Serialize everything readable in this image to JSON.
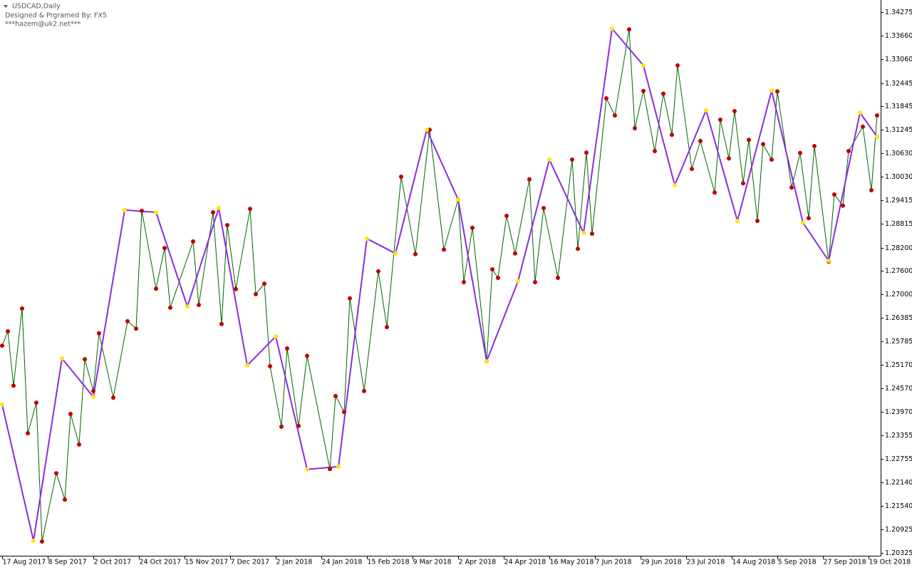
{
  "chart_data": {
    "type": "line",
    "title": "USDCAD,Daily",
    "annotations": [
      "Designed & Prgramed By: FX5",
      "***hazem@uk2.net***"
    ],
    "xlim": [
      0,
      307
    ],
    "xticks": [
      {
        "value": 0,
        "label": "17 Aug 2017"
      },
      {
        "value": 16,
        "label": "8 Sep 2017"
      },
      {
        "value": 32,
        "label": "2 Oct 2017"
      },
      {
        "value": 48,
        "label": "24 Oct 2017"
      },
      {
        "value": 64,
        "label": "15 Nov 2017"
      },
      {
        "value": 80,
        "label": "7 Dec 2017"
      },
      {
        "value": 96,
        "label": "2 Jan 2018"
      },
      {
        "value": 112,
        "label": "24 Jan 2018"
      },
      {
        "value": 128,
        "label": "15 Feb 2018"
      },
      {
        "value": 144,
        "label": "9 Mar 2018"
      },
      {
        "value": 160,
        "label": "2 Apr 2018"
      },
      {
        "value": 176,
        "label": "24 Apr 2018"
      },
      {
        "value": 192,
        "label": "16 May 2018"
      },
      {
        "value": 208,
        "label": "7 Jun 2018"
      },
      {
        "value": 224,
        "label": "29 Jun 2018"
      },
      {
        "value": 240,
        "label": "23 Jul 2018"
      },
      {
        "value": 256,
        "label": "14 Aug 2018"
      },
      {
        "value": 272,
        "label": "5 Sep 2018"
      },
      {
        "value": 288,
        "label": "27 Sep 2018"
      },
      {
        "value": 304,
        "label": "19 Oct 2018"
      }
    ],
    "ylim": [
      1.20325,
      1.34275
    ],
    "yticks": [
      1.34275,
      {
        "value": 1.3366,
        "label": "1.33660"
      },
      {
        "value": 1.3306,
        "label": "1.33060"
      },
      1.32445,
      1.31845,
      1.31245,
      {
        "value": 1.3063,
        "label": "1.30630"
      },
      {
        "value": 1.3003,
        "label": "1.30030"
      },
      1.29415,
      1.28815,
      {
        "value": 1.282,
        "label": "1.28200"
      },
      {
        "value": 1.276,
        "label": "1.27600"
      },
      {
        "value": 1.27,
        "label": "1.27000"
      },
      1.26385,
      1.25785,
      {
        "value": 1.2517,
        "label": "1.25170"
      },
      {
        "value": 1.2457,
        "label": "1.24570"
      },
      {
        "value": 1.2397,
        "label": "1.23970"
      },
      1.23355,
      1.22755,
      {
        "value": 1.2214,
        "label": "1.22140"
      },
      {
        "value": 1.2154,
        "label": "1.21540"
      },
      1.20925,
      1.20325
    ],
    "series": [
      {
        "color": "#006400",
        "marker_color": "#c00000",
        "x": [
          0,
          2,
          4,
          7,
          9,
          12,
          14,
          19,
          22,
          24,
          27,
          29,
          32,
          34,
          39,
          44,
          47,
          49,
          54,
          57,
          59,
          67,
          69,
          74,
          77,
          79,
          82,
          87,
          89,
          92,
          94,
          98,
          100,
          104,
          107,
          115,
          117,
          120,
          122,
          127,
          132,
          135,
          140,
          145,
          150,
          155,
          160,
          162,
          165,
          170,
          172,
          174,
          177,
          180,
          185,
          187,
          190,
          195,
          200,
          202,
          205,
          207,
          212,
          215,
          220,
          222,
          225,
          229,
          232,
          235,
          237,
          242,
          245,
          250,
          252,
          255,
          257,
          260,
          262,
          265,
          267,
          270,
          272,
          277,
          280,
          283,
          285,
          290,
          292,
          295,
          297,
          302,
          305,
          307
        ],
        "values": [
          1.2567,
          1.2604,
          1.2464,
          1.2663,
          1.2341,
          1.242,
          1.2062,
          1.2238,
          1.217,
          1.2391,
          1.2312,
          1.2532,
          1.245,
          1.2599,
          1.2433,
          1.263,
          1.2611,
          1.2915,
          1.2714,
          1.2819,
          1.2665,
          1.2836,
          1.2672,
          1.2911,
          1.2623,
          1.2878,
          1.2713,
          1.292,
          1.27,
          1.2727,
          1.2514,
          1.2358,
          1.256,
          1.236,
          1.2541,
          1.2249,
          1.2437,
          1.2396,
          1.2689,
          1.245,
          1.2759,
          1.2615,
          1.3003,
          1.2803,
          1.3124,
          1.2815,
          1.2944,
          1.2731,
          1.2871,
          1.2527,
          1.2764,
          1.2742,
          1.2902,
          1.2805,
          1.2996,
          1.2731,
          1.2922,
          1.2742,
          1.3047,
          1.2817,
          1.3065,
          1.2856,
          1.3205,
          1.3161,
          1.3383,
          1.3128,
          1.3224,
          1.3069,
          1.3217,
          1.3111,
          1.329,
          1.3023,
          1.3095,
          1.2962,
          1.315,
          1.305,
          1.3172,
          1.2986,
          1.3098,
          1.2889,
          1.3087,
          1.3047,
          1.3223,
          1.2975,
          1.3064,
          1.2896,
          1.3082,
          1.2784,
          1.2957,
          1.2928,
          1.3069,
          1.3132,
          1.2968,
          1.3161
        ]
      },
      {
        "color": "#8a2be2",
        "marker_color": "#ffe600",
        "x": [
          0,
          11,
          21,
          32,
          43,
          54,
          65,
          76,
          86,
          96,
          107,
          118,
          128,
          138,
          149,
          160,
          170,
          181,
          192,
          204,
          214,
          225,
          236,
          247,
          258,
          270,
          281,
          290,
          301,
          307
        ],
        "values": [
          1.2415,
          1.2064,
          1.2534,
          1.2435,
          1.2917,
          1.2911,
          1.2668,
          1.2922,
          1.2516,
          1.2591,
          1.2248,
          1.2255,
          1.2843,
          1.2805,
          1.3124,
          1.2944,
          1.2527,
          1.2733,
          1.3047,
          1.2858,
          1.3385,
          1.329,
          1.2981,
          1.3174,
          1.2889,
          1.3225,
          1.2884,
          1.2786,
          1.3168,
          1.3106
        ]
      }
    ]
  }
}
